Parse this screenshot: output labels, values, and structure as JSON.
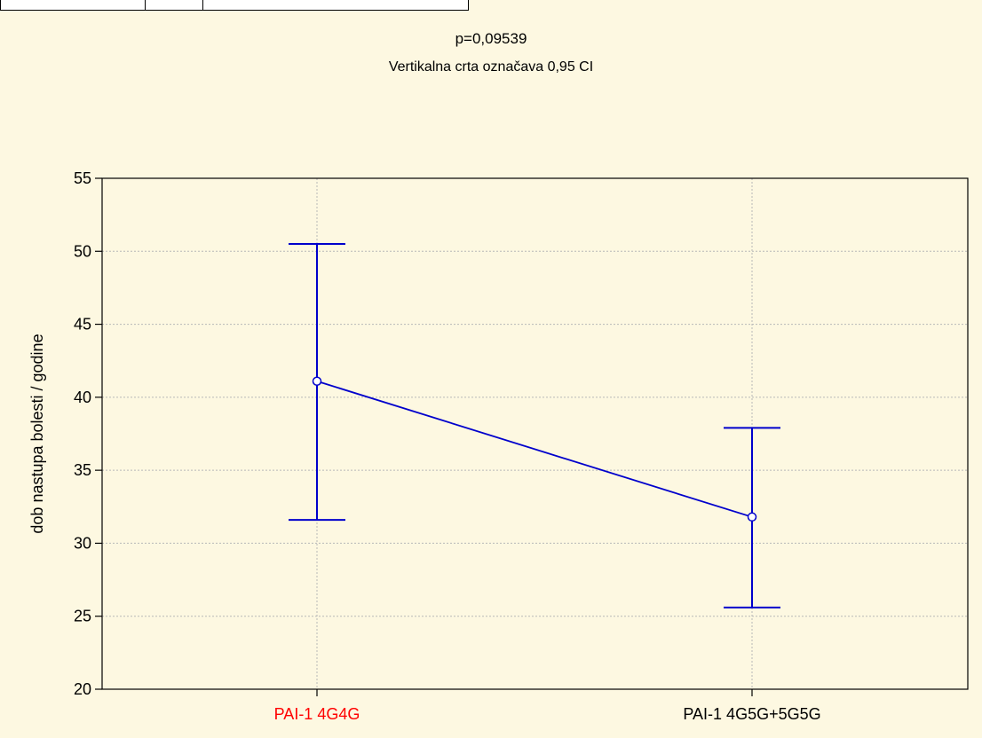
{
  "chart_data": {
    "type": "line",
    "title": "p=0,09539",
    "subtitle": "Vertikalna crta označava 0,95 CI",
    "xlabel": "",
    "ylabel": "dob nastupa bolesti / godine",
    "categories": [
      "PAI-1 4G4G",
      "PAI-1 4G5G+5G5G"
    ],
    "category_colors": [
      "#ff0000",
      "#000000"
    ],
    "series": [
      {
        "values": [
          41.1,
          31.8
        ],
        "ci_lower": [
          31.6,
          25.6
        ],
        "ci_upper": [
          50.5,
          37.9
        ],
        "color": "#0000cc"
      }
    ],
    "ylim": [
      20,
      55
    ],
    "yticks": [
      20,
      25,
      30,
      35,
      40,
      45,
      50,
      55
    ],
    "grid": true,
    "error_bars": "0.95 CI"
  }
}
